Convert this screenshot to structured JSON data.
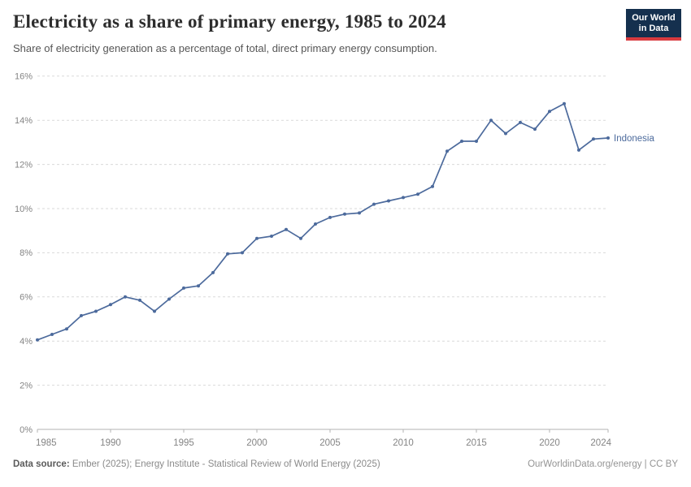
{
  "header": {
    "title": "Electricity as a share of primary energy, 1985 to 2024",
    "subtitle": "Share of electricity generation as a percentage of total, direct primary energy consumption.",
    "logo_line1": "Our World",
    "logo_line2": "in Data"
  },
  "chart_data": {
    "type": "line",
    "title": "Electricity as a share of primary energy, 1985 to 2024",
    "subtitle": "Share of electricity generation as a percentage of total, direct primary energy consumption.",
    "xlabel": "",
    "ylabel": "",
    "xlim": [
      1985,
      2024
    ],
    "ylim": [
      0,
      16
    ],
    "grid": "horizontal-dashed",
    "legend_position": "line-end-label",
    "yticks": [
      0,
      2,
      4,
      6,
      8,
      10,
      12,
      14,
      16
    ],
    "ytick_labels": [
      "0%",
      "2%",
      "4%",
      "6%",
      "8%",
      "10%",
      "12%",
      "14%",
      "16%"
    ],
    "xticks": [
      1985,
      1990,
      1995,
      2000,
      2005,
      2010,
      2015,
      2020,
      2024
    ],
    "x": [
      1985,
      1986,
      1987,
      1988,
      1989,
      1990,
      1991,
      1992,
      1993,
      1994,
      1995,
      1996,
      1997,
      1998,
      1999,
      2000,
      2001,
      2002,
      2003,
      2004,
      2005,
      2006,
      2007,
      2008,
      2009,
      2010,
      2011,
      2012,
      2013,
      2014,
      2015,
      2016,
      2017,
      2018,
      2019,
      2020,
      2021,
      2022,
      2023,
      2024
    ],
    "series": [
      {
        "name": "Indonesia",
        "color": "#4C6A9C",
        "values": [
          4.05,
          4.3,
          4.55,
          5.15,
          5.35,
          5.65,
          6.0,
          5.85,
          5.35,
          5.9,
          6.4,
          6.5,
          7.1,
          7.95,
          8.0,
          8.65,
          8.75,
          9.05,
          8.65,
          9.3,
          9.6,
          9.75,
          9.8,
          10.2,
          10.35,
          10.5,
          10.65,
          11.0,
          12.6,
          13.05,
          13.05,
          14.0,
          13.4,
          13.9,
          13.6,
          14.4,
          14.75,
          12.65,
          13.15,
          13.2
        ]
      }
    ]
  },
  "footer": {
    "source_label": "Data source:",
    "source_text": " Ember (2025); Energy Institute - Statistical Review of World Energy (2025)",
    "credit": "OurWorldinData.org/energy | CC BY"
  },
  "colors": {
    "line": "#4C6A9C",
    "grid": "#d9d9d9",
    "axis": "#b3b3b3",
    "tick_label": "#848484",
    "logo_navy": "#15304e",
    "logo_red": "#d93b3f"
  }
}
